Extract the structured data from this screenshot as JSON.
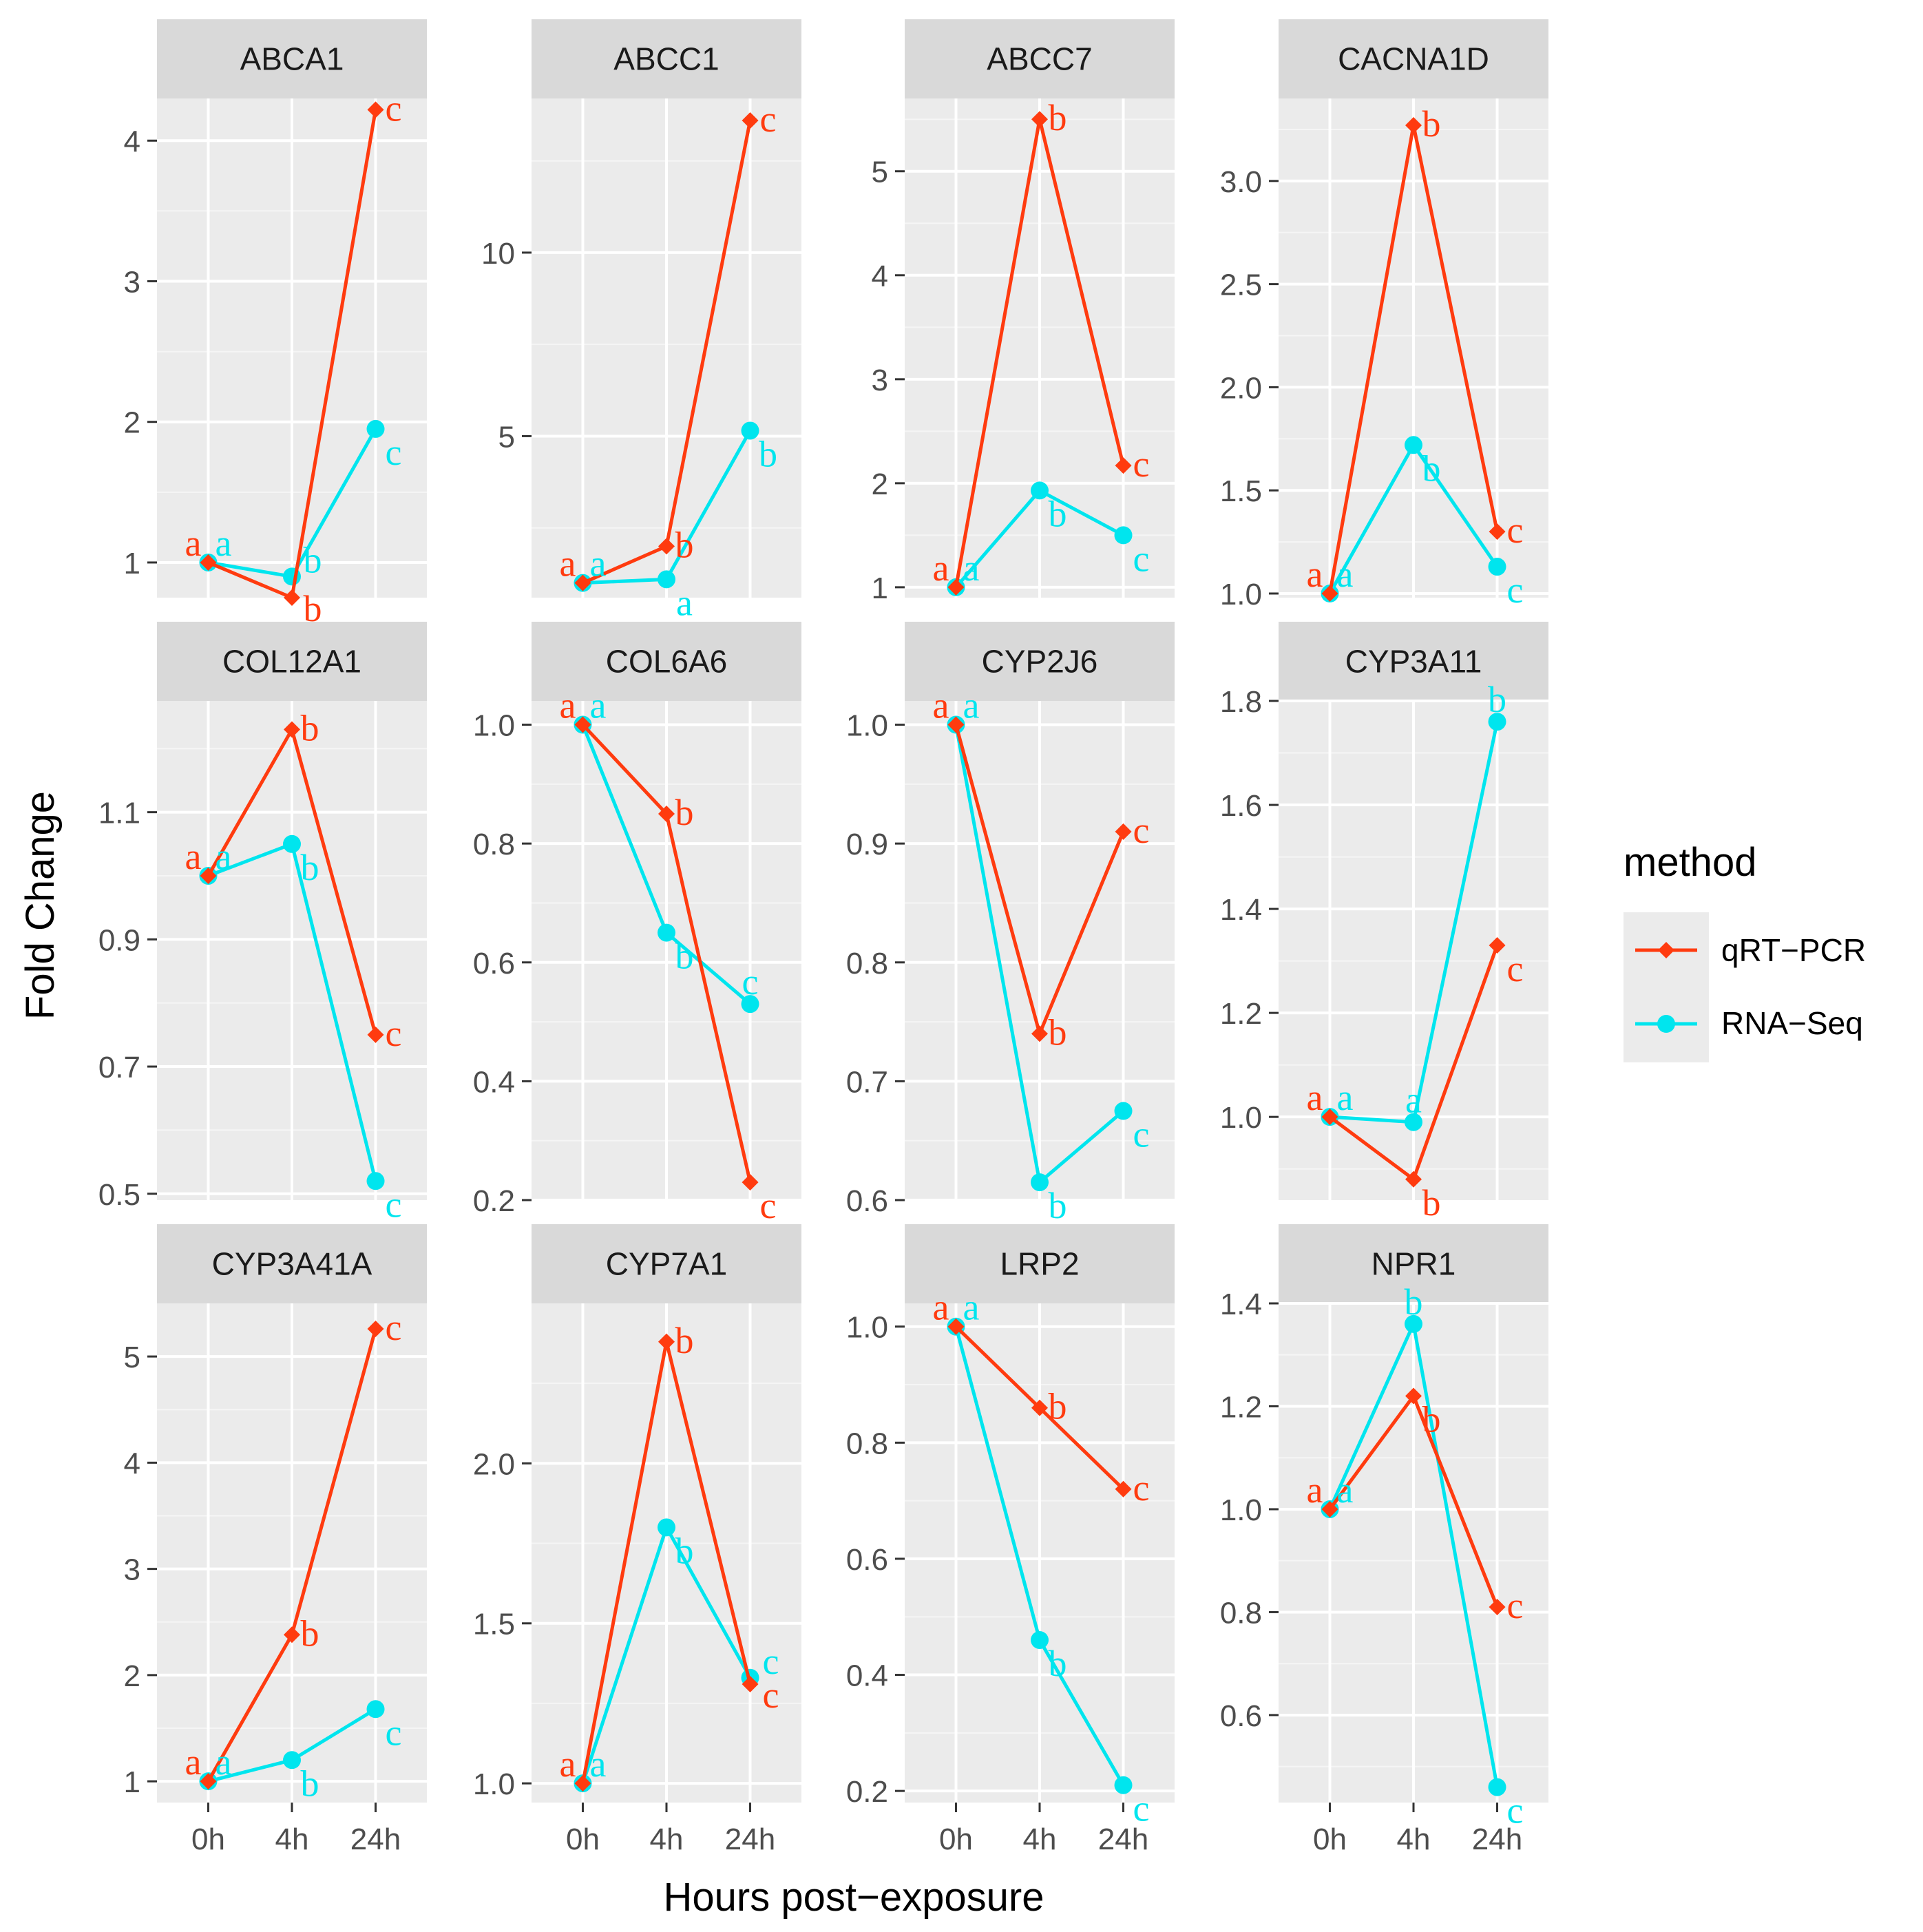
{
  "chart_data": {
    "type": "line",
    "facet_layout": "4 columns x 3 rows",
    "x_categories": [
      "0h",
      "4h",
      "24h"
    ],
    "xlabel": "Hours post−exposure",
    "ylabel": "Fold Change",
    "legend": {
      "title": "method",
      "position": "right",
      "entries": [
        {
          "name": "qRT−PCR",
          "color": "#ff3b0f",
          "marker": "diamond"
        },
        {
          "name": "RNA−Seq",
          "color": "#00e5ee",
          "marker": "circle"
        }
      ]
    },
    "panels": [
      {
        "gene": "ABCA1",
        "ylim": [
          0.75,
          4.3
        ],
        "yticks": [
          1,
          2,
          3,
          4
        ],
        "tick_labels": [
          "1",
          "2",
          "3",
          "4"
        ],
        "series": [
          {
            "name": "qRT−PCR",
            "values": [
              1.0,
              0.75,
              4.22
            ],
            "letters": [
              "a",
              "b",
              "c"
            ]
          },
          {
            "name": "RNA−Seq",
            "values": [
              1.0,
              0.9,
              1.95
            ],
            "letters": [
              "a",
              "b",
              "c"
            ]
          }
        ]
      },
      {
        "gene": "ABCC1",
        "ylim": [
          0.6,
          14.2
        ],
        "yticks": [
          5,
          10
        ],
        "tick_labels": [
          "5",
          "10"
        ],
        "series": [
          {
            "name": "qRT−PCR",
            "values": [
              1.0,
              2.0,
              13.6
            ],
            "letters": [
              "a",
              "b",
              "c"
            ]
          },
          {
            "name": "RNA−Seq",
            "values": [
              1.0,
              1.1,
              5.15
            ],
            "letters": [
              "a",
              "a",
              "b"
            ]
          }
        ]
      },
      {
        "gene": "ABCC7",
        "ylim": [
          0.9,
          5.7
        ],
        "yticks": [
          1,
          2,
          3,
          4,
          5
        ],
        "tick_labels": [
          "1",
          "2",
          "3",
          "4",
          "5"
        ],
        "series": [
          {
            "name": "qRT−PCR",
            "values": [
              1.0,
              5.5,
              2.17
            ],
            "letters": [
              "a",
              "b",
              "c"
            ]
          },
          {
            "name": "RNA−Seq",
            "values": [
              1.0,
              1.93,
              1.5
            ],
            "letters": [
              "a",
              "b",
              "c"
            ]
          }
        ]
      },
      {
        "gene": "CACNA1D",
        "ylim": [
          0.98,
          3.4
        ],
        "yticks": [
          1.0,
          1.5,
          2.0,
          2.5,
          3.0
        ],
        "tick_labels": [
          "1.0",
          "1.5",
          "2.0",
          "2.5",
          "3.0"
        ],
        "series": [
          {
            "name": "qRT−PCR",
            "values": [
              1.0,
              3.27,
              1.3
            ],
            "letters": [
              "a",
              "b",
              "c"
            ]
          },
          {
            "name": "RNA−Seq",
            "values": [
              1.0,
              1.72,
              1.13
            ],
            "letters": [
              "a",
              "b",
              "c"
            ]
          }
        ]
      },
      {
        "gene": "COL12A1",
        "ylim": [
          0.49,
          1.275
        ],
        "yticks": [
          0.5,
          0.7,
          0.9,
          1.1
        ],
        "tick_labels": [
          "0.5",
          "0.7",
          "0.9",
          "1.1"
        ],
        "series": [
          {
            "name": "qRT−PCR",
            "values": [
              1.0,
              1.23,
              0.75
            ],
            "letters": [
              "a",
              "b",
              "c"
            ]
          },
          {
            "name": "RNA−Seq",
            "values": [
              1.0,
              1.05,
              0.52
            ],
            "letters": [
              "a",
              "b",
              "c"
            ]
          }
        ]
      },
      {
        "gene": "COL6A6",
        "ylim": [
          0.2,
          1.04
        ],
        "yticks": [
          0.2,
          0.4,
          0.6,
          0.8,
          1.0
        ],
        "tick_labels": [
          "0.2",
          "0.4",
          "0.6",
          "0.8",
          "1.0"
        ],
        "series": [
          {
            "name": "qRT−PCR",
            "values": [
              1.0,
              0.85,
              0.23
            ],
            "letters": [
              "a",
              "b",
              "c"
            ]
          },
          {
            "name": "RNA−Seq",
            "values": [
              1.0,
              0.65,
              0.53
            ],
            "letters": [
              "a",
              "b",
              "c"
            ]
          }
        ]
      },
      {
        "gene": "CYP2J6",
        "ylim": [
          0.6,
          1.02
        ],
        "yticks": [
          0.6,
          0.7,
          0.8,
          0.9,
          1.0
        ],
        "tick_labels": [
          "0.6",
          "0.7",
          "0.8",
          "0.9",
          "1.0"
        ],
        "series": [
          {
            "name": "qRT−PCR",
            "values": [
              1.0,
              0.74,
              0.91
            ],
            "letters": [
              "a",
              "b",
              "c"
            ]
          },
          {
            "name": "RNA−Seq",
            "values": [
              1.0,
              0.615,
              0.675
            ],
            "letters": [
              "a",
              "b",
              "c"
            ]
          }
        ]
      },
      {
        "gene": "CYP3A11",
        "ylim": [
          0.84,
          1.8
        ],
        "yticks": [
          1.0,
          1.2,
          1.4,
          1.6,
          1.8
        ],
        "tick_labels": [
          "1.0",
          "1.2",
          "1.4",
          "1.6",
          "1.8"
        ],
        "series": [
          {
            "name": "qRT−PCR",
            "values": [
              1.0,
              0.88,
              1.33
            ],
            "letters": [
              "a",
              "b",
              "c"
            ]
          },
          {
            "name": "RNA−Seq",
            "values": [
              1.0,
              0.99,
              1.76
            ],
            "letters": [
              "a",
              "a",
              "b"
            ]
          }
        ]
      },
      {
        "gene": "CYP3A41A",
        "ylim": [
          0.8,
          5.5
        ],
        "yticks": [
          1,
          2,
          3,
          4,
          5
        ],
        "tick_labels": [
          "1",
          "2",
          "3",
          "4",
          "5"
        ],
        "series": [
          {
            "name": "qRT−PCR",
            "values": [
              1.0,
              2.38,
              5.26
            ],
            "letters": [
              "a",
              "b",
              "c"
            ]
          },
          {
            "name": "RNA−Seq",
            "values": [
              1.0,
              1.2,
              1.68
            ],
            "letters": [
              "a",
              "b",
              "c"
            ]
          }
        ]
      },
      {
        "gene": "CYP7A1",
        "ylim": [
          0.94,
          2.5
        ],
        "yticks": [
          1.0,
          1.5,
          2.0
        ],
        "tick_labels": [
          "1.0",
          "1.5",
          "2.0"
        ],
        "series": [
          {
            "name": "qRT−PCR",
            "values": [
              1.0,
              2.38,
              1.31
            ],
            "letters": [
              "a",
              "b",
              "c"
            ]
          },
          {
            "name": "RNA−Seq",
            "values": [
              1.0,
              1.8,
              1.33
            ],
            "letters": [
              "a",
              "b",
              "c"
            ]
          }
        ]
      },
      {
        "gene": "LRP2",
        "ylim": [
          0.18,
          1.04
        ],
        "yticks": [
          0.2,
          0.4,
          0.6,
          0.8,
          1.0
        ],
        "tick_labels": [
          "0.2",
          "0.4",
          "0.6",
          "0.8",
          "1.0"
        ],
        "series": [
          {
            "name": "qRT−PCR",
            "values": [
              1.0,
              0.86,
              0.72
            ],
            "letters": [
              "a",
              "b",
              "c"
            ]
          },
          {
            "name": "RNA−Seq",
            "values": [
              1.0,
              0.46,
              0.21
            ],
            "letters": [
              "a",
              "b",
              "c"
            ]
          }
        ]
      },
      {
        "gene": "NPR1",
        "ylim": [
          0.43,
          1.4
        ],
        "yticks": [
          0.6,
          0.8,
          1.0,
          1.2,
          1.4
        ],
        "tick_labels": [
          "0.6",
          "0.8",
          "1.0",
          "1.2",
          "1.4"
        ],
        "series": [
          {
            "name": "qRT−PCR",
            "values": [
              1.0,
              1.22,
              0.81
            ],
            "letters": [
              "a",
              "b",
              "c"
            ]
          },
          {
            "name": "RNA−Seq",
            "values": [
              1.0,
              1.36,
              0.46
            ],
            "letters": [
              "a",
              "b",
              "c"
            ]
          }
        ]
      }
    ]
  }
}
